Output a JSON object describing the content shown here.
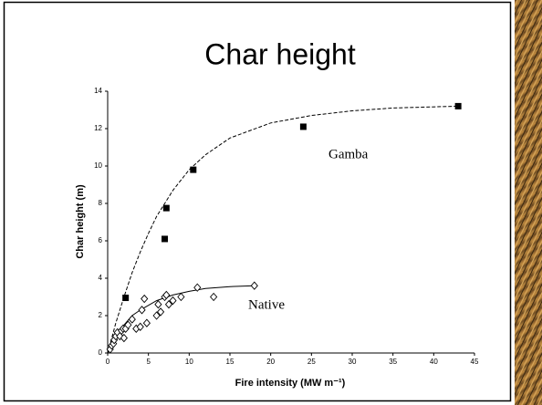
{
  "chart_data": {
    "type": "scatter",
    "title": "Char height",
    "x_label": "Fire intensity (MW m⁻¹)",
    "y_label": "Char height (m)",
    "xlim": [
      0,
      45
    ],
    "ylim": [
      0,
      14
    ],
    "xticks": [
      0,
      5,
      10,
      15,
      20,
      25,
      30,
      35,
      40,
      45
    ],
    "yticks": [
      0,
      2,
      4,
      6,
      8,
      10,
      12,
      14
    ],
    "series": [
      {
        "name": "Gamba",
        "marker": "square",
        "color": "#000000",
        "x": [
          2.2,
          7,
          7.2,
          10.5,
          24,
          43
        ],
        "values": [
          2.95,
          6.1,
          7.75,
          9.8,
          12.1,
          13.2
        ],
        "fit": {
          "dash": true,
          "x": [
            0,
            1,
            2,
            3,
            4,
            5,
            6,
            8,
            10,
            12,
            15,
            20,
            25,
            30,
            35,
            43
          ],
          "values": [
            0,
            1.6,
            3.0,
            4.3,
            5.4,
            6.4,
            7.3,
            8.7,
            9.8,
            10.6,
            11.5,
            12.3,
            12.7,
            12.95,
            13.1,
            13.2
          ]
        }
      },
      {
        "name": "Native",
        "marker": "diamond",
        "color": "#000000",
        "x": [
          0.3,
          0.5,
          0.7,
          0.8,
          1,
          1.2,
          1.5,
          1.7,
          1.9,
          2,
          2.2,
          2.5,
          3,
          3.5,
          4,
          4.2,
          4.5,
          4.8,
          6,
          6.2,
          6.5,
          7,
          7.2,
          7.5,
          8,
          9,
          11,
          13,
          18
        ],
        "values": [
          0.2,
          0.4,
          0.5,
          0.7,
          0.9,
          1.1,
          0.9,
          1.2,
          1.3,
          0.8,
          1.3,
          1.5,
          1.8,
          1.3,
          1.4,
          2.3,
          2.9,
          1.6,
          2.0,
          2.6,
          2.2,
          3.0,
          3.1,
          2.6,
          2.8,
          3.0,
          3.5,
          3.0,
          3.6
        ],
        "fit": {
          "dash": false,
          "x": [
            0,
            1,
            2,
            3,
            4,
            6,
            8,
            10,
            12,
            15,
            18
          ],
          "values": [
            0,
            0.9,
            1.5,
            2.0,
            2.3,
            2.8,
            3.1,
            3.3,
            3.45,
            3.55,
            3.6
          ]
        }
      }
    ]
  }
}
